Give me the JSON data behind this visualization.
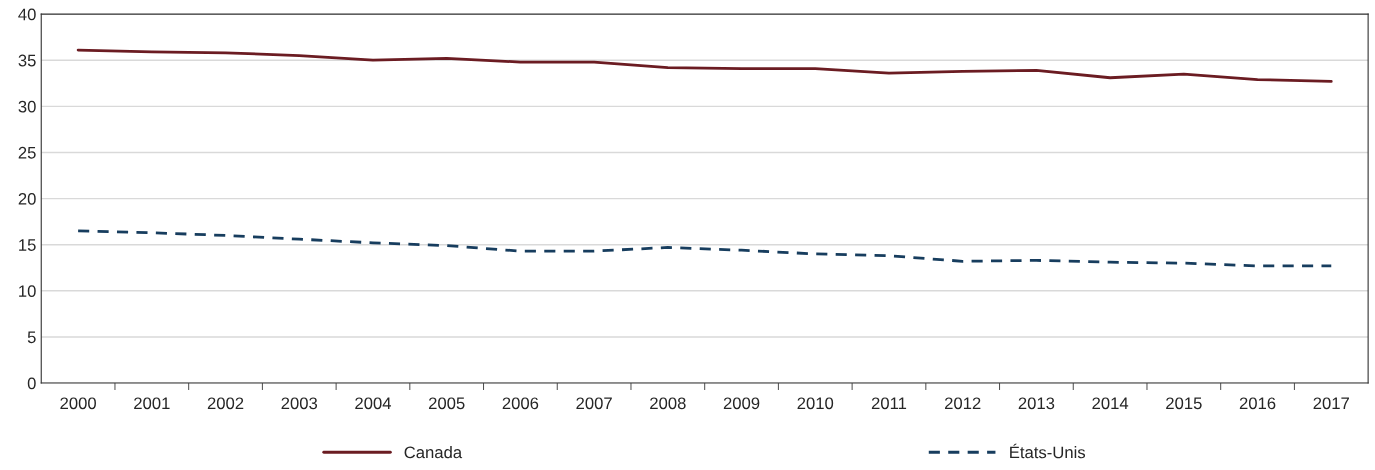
{
  "chart_data": {
    "type": "line",
    "categories": [
      "2000",
      "2001",
      "2002",
      "2003",
      "2004",
      "2005",
      "2006",
      "2007",
      "2008",
      "2009",
      "2010",
      "2011",
      "2012",
      "2013",
      "2014",
      "2015",
      "2016",
      "2017"
    ],
    "series": [
      {
        "name": "Canada",
        "color": "#6b1c22",
        "line_style": "solid",
        "values": [
          36.1,
          35.9,
          35.8,
          35.5,
          35.0,
          35.2,
          34.8,
          34.8,
          34.2,
          34.1,
          34.1,
          33.6,
          33.8,
          33.9,
          33.1,
          33.5,
          32.9,
          32.7
        ]
      },
      {
        "name": "États-Unis",
        "color": "#173d5e",
        "line_style": "dashed",
        "values": [
          16.5,
          16.3,
          16.0,
          15.6,
          15.2,
          14.9,
          14.3,
          14.3,
          14.7,
          14.4,
          14.0,
          13.8,
          13.2,
          13.3,
          13.1,
          13.0,
          12.7,
          12.7
        ]
      }
    ],
    "ylim": [
      0,
      40
    ],
    "yticks": [
      0,
      5,
      10,
      15,
      20,
      25,
      30,
      35,
      40
    ],
    "grid": "y",
    "legend": "bottom"
  }
}
